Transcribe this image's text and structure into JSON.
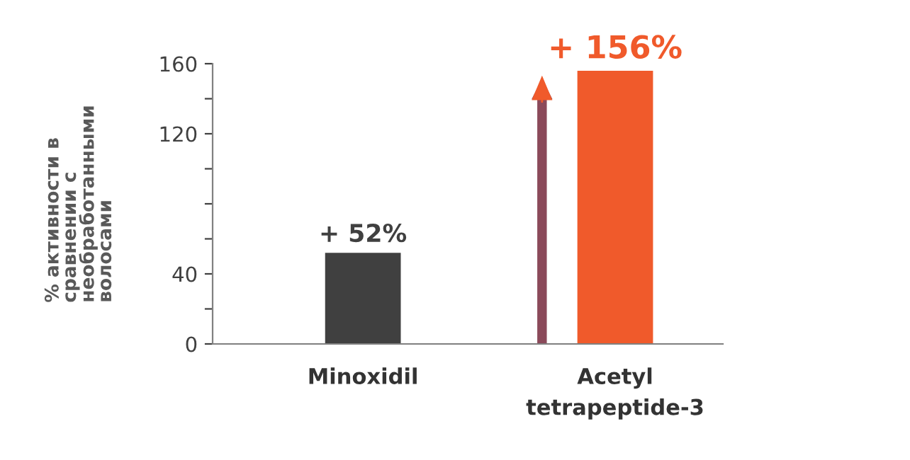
{
  "chart_data": {
    "type": "bar",
    "ylabel": "% активности в\nсравнении с\nнеобработанными\nволосами",
    "categories": [
      "Minoxidil",
      "Acetyl\ntetrapeptide-3"
    ],
    "values": [
      52,
      156
    ],
    "colors": [
      "#404040",
      "#f05a2b"
    ],
    "value_labels": [
      "+ 52%",
      "+ 156%"
    ],
    "ylim": [
      0,
      160
    ],
    "yticks": [
      0,
      {
        "value": 20,
        "label": null
      },
      40,
      {
        "value": 60,
        "label": null
      },
      {
        "value": 80,
        "label": null
      },
      {
        "value": 100,
        "label": null
      },
      120,
      {
        "value": 140,
        "label": null
      },
      160
    ],
    "grid": false
  }
}
